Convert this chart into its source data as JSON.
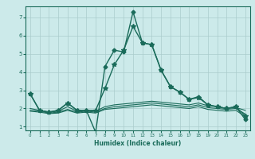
{
  "title": "",
  "xlabel": "Humidex (Indice chaleur)",
  "ylabel": "",
  "bg_color": "#cceaea",
  "grid_color": "#aacccc",
  "line_color": "#1a6b5a",
  "xlim": [
    -0.5,
    23.5
  ],
  "ylim": [
    0.8,
    7.6
  ],
  "xticks": [
    0,
    1,
    2,
    3,
    4,
    5,
    6,
    7,
    8,
    9,
    10,
    11,
    12,
    13,
    14,
    15,
    16,
    17,
    18,
    19,
    20,
    21,
    22,
    23
  ],
  "yticks": [
    1,
    2,
    3,
    4,
    5,
    6,
    7
  ],
  "series": [
    {
      "x": [
        0,
        1,
        2,
        3,
        4,
        5,
        6,
        7,
        8,
        9,
        10,
        11,
        12,
        13,
        14,
        15,
        16,
        17,
        18,
        19,
        20,
        21,
        22,
        23
      ],
      "y": [
        2.8,
        1.9,
        1.8,
        1.9,
        2.3,
        1.9,
        1.9,
        0.7,
        4.3,
        5.2,
        5.1,
        7.3,
        5.6,
        5.5,
        4.1,
        3.2,
        2.9,
        2.5,
        2.65,
        2.2,
        2.1,
        2.0,
        2.1,
        1.4
      ],
      "marker": "D",
      "markersize": 2.5,
      "linewidth": 1.0
    },
    {
      "x": [
        0,
        1,
        2,
        3,
        4,
        5,
        6,
        7,
        8,
        9,
        10,
        11,
        12,
        13,
        14,
        15,
        16,
        17,
        18,
        19,
        20,
        21,
        22,
        23
      ],
      "y": [
        2.8,
        1.9,
        1.8,
        1.9,
        2.3,
        1.9,
        1.9,
        1.9,
        3.1,
        4.4,
        5.2,
        6.5,
        5.6,
        5.5,
        4.1,
        3.2,
        2.9,
        2.5,
        2.6,
        2.2,
        2.1,
        2.0,
        2.1,
        1.6
      ],
      "marker": "*",
      "markersize": 4,
      "linewidth": 1.0
    },
    {
      "x": [
        0,
        1,
        2,
        3,
        4,
        5,
        6,
        7,
        8,
        9,
        10,
        11,
        12,
        13,
        14,
        15,
        16,
        17,
        18,
        19,
        20,
        21,
        22,
        23
      ],
      "y": [
        2.0,
        1.9,
        1.8,
        1.85,
        2.1,
        1.85,
        1.9,
        1.85,
        2.1,
        2.2,
        2.25,
        2.3,
        2.35,
        2.4,
        2.35,
        2.3,
        2.25,
        2.2,
        2.3,
        2.15,
        2.1,
        2.0,
        2.05,
        1.9
      ],
      "marker": null,
      "markersize": 0,
      "linewidth": 0.8
    },
    {
      "x": [
        0,
        1,
        2,
        3,
        4,
        5,
        6,
        7,
        8,
        9,
        10,
        11,
        12,
        13,
        14,
        15,
        16,
        17,
        18,
        19,
        20,
        21,
        22,
        23
      ],
      "y": [
        1.9,
        1.85,
        1.75,
        1.8,
        1.95,
        1.8,
        1.85,
        1.8,
        2.0,
        2.1,
        2.15,
        2.2,
        2.25,
        2.3,
        2.25,
        2.2,
        2.15,
        2.1,
        2.2,
        2.05,
        2.0,
        1.95,
        2.0,
        1.7
      ],
      "marker": null,
      "markersize": 0,
      "linewidth": 0.8
    },
    {
      "x": [
        0,
        1,
        2,
        3,
        4,
        5,
        6,
        7,
        8,
        9,
        10,
        11,
        12,
        13,
        14,
        15,
        16,
        17,
        18,
        19,
        20,
        21,
        22,
        23
      ],
      "y": [
        1.85,
        1.8,
        1.72,
        1.75,
        1.9,
        1.75,
        1.8,
        1.75,
        1.95,
        2.0,
        2.05,
        2.1,
        2.15,
        2.2,
        2.15,
        2.1,
        2.05,
        2.0,
        2.1,
        1.95,
        1.9,
        1.85,
        1.9,
        1.55
      ],
      "marker": null,
      "markersize": 0,
      "linewidth": 0.8
    }
  ]
}
